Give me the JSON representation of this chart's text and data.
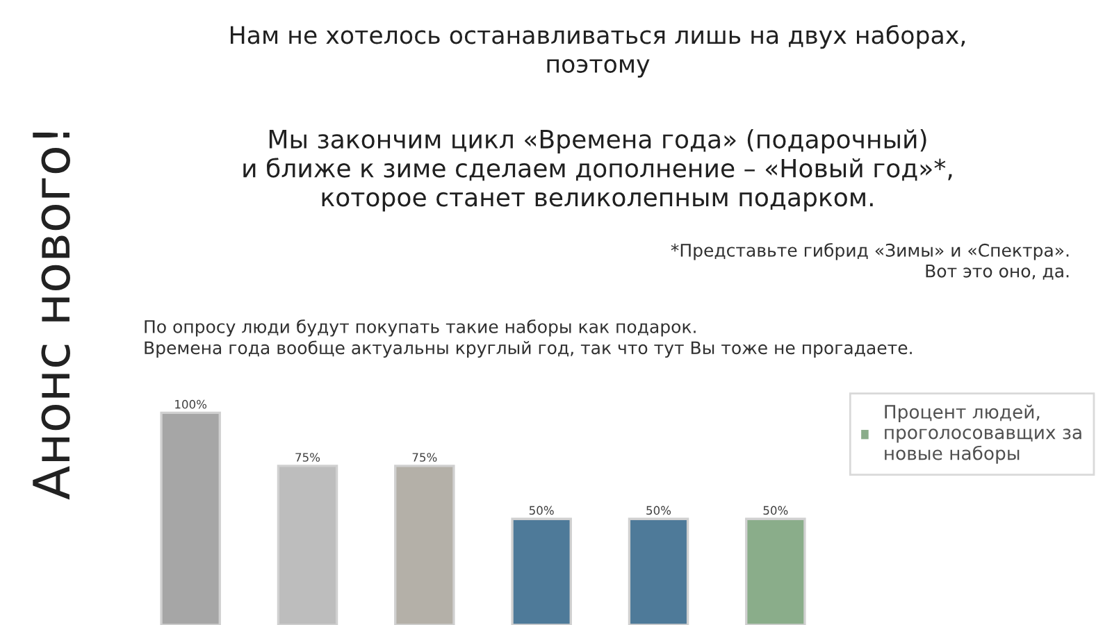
{
  "chart_data": {
    "type": "bar",
    "title": "Нам не хотелось останавливаться лишь на двух наборах,\nпоэтому",
    "subtitle": "Мы закончим цикл «Времена года» (подарочный)\nи ближе к зиме сделаем дополнение – «Новый год»*,\nкоторое станет великолепным подарком.",
    "annotations": [
      "*Представьте гибрид «Зимы» и «Спектра».\nВот это оно, да.",
      "По опросу люди будут покупать такие наборы как подарок.\nВремена года вообще актуальны круглый год, так что тут Вы тоже не прогадаете.",
      "Анонс нового!"
    ],
    "categories": [
      null,
      null,
      null,
      null,
      null,
      null
    ],
    "series": [
      {
        "name": "Процент людей,\nпроголосовавщих за\nновые наборы",
        "color": "#8aad8a",
        "colors": [
          "#a6a6a6",
          "#bdbdbd",
          "#b4b0a8",
          "#4e7a99",
          "#4e7a99",
          "#8aad8a"
        ],
        "values": [
          100,
          75,
          75,
          50,
          50,
          50
        ],
        "value_labels": [
          "100%",
          "75%",
          "75%",
          "50%",
          "50%",
          "50%"
        ]
      }
    ],
    "legend": "right",
    "tick_labels": false,
    "grid": false
  }
}
